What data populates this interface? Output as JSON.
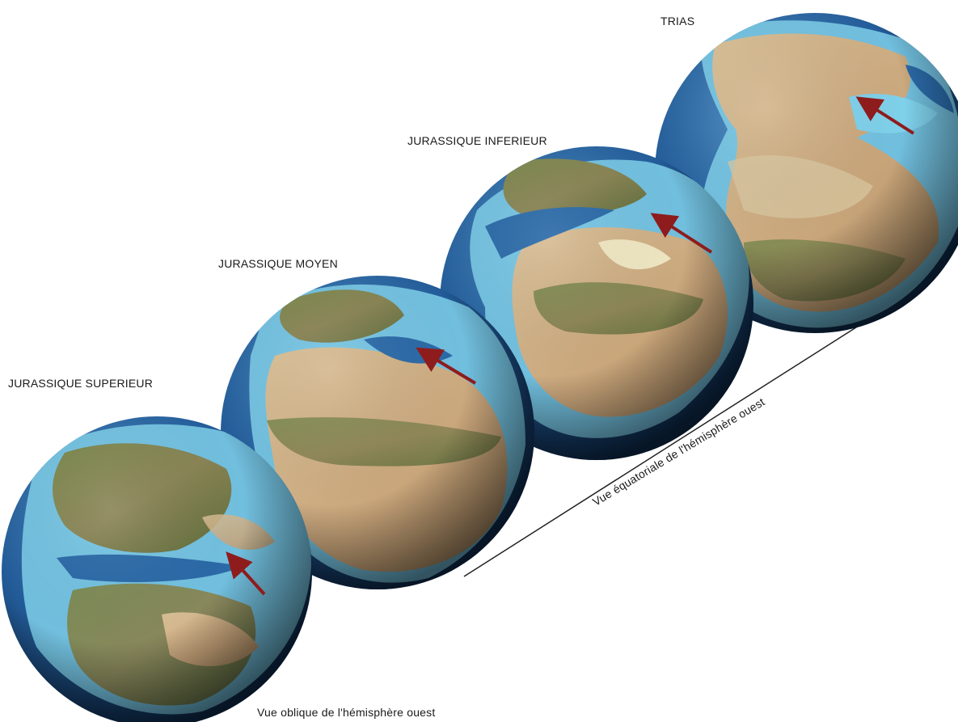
{
  "globes": [
    {
      "label": "TRIAS",
      "era": "trias"
    },
    {
      "label": "JURASSIQUE INFERIEUR",
      "era": "jurassique-inferieur"
    },
    {
      "label": "JURASSIQUE MOYEN",
      "era": "jurassique-moyen"
    },
    {
      "label": "JURASSIQUE SUPERIEUR",
      "era": "jurassique-superieur"
    }
  ],
  "captions": {
    "oblique": "Vue oblique de l'hémisphère ouest",
    "equatorial": "Vue équatoriale de l'hémisphère ouest"
  },
  "colors": {
    "deep_ocean": "#1d4f86",
    "shallow_sea": "#7fd0ea",
    "land_green": "#6f7d45",
    "land_desert": "#d4b98c",
    "arrow": "#8e1c1c"
  },
  "icons": {
    "arrow": "red-arrow-icon"
  }
}
